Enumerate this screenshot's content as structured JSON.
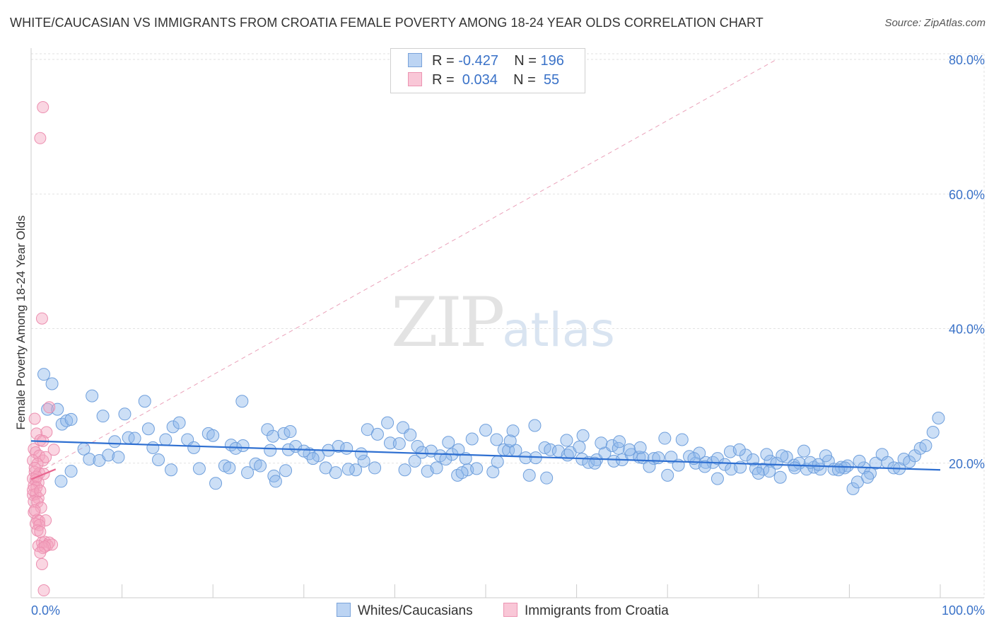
{
  "title": "WHITE/CAUCASIAN VS IMMIGRANTS FROM CROATIA FEMALE POVERTY AMONG 18-24 YEAR OLDS CORRELATION CHART",
  "source": "Source: ZipAtlas.com",
  "watermark": {
    "zip": "ZIP",
    "atlas": "atlas"
  },
  "colors": {
    "blue": "#8fb8ea",
    "blue_line": "#2e6fd1",
    "pink": "#f3a3bf",
    "pink_line": "#e86690",
    "axis_label": "#3a72c8"
  },
  "legend": {
    "rows": [
      {
        "r_label": "R = ",
        "r_value": "-0.427",
        "n_label": "N = ",
        "n_value": "196"
      },
      {
        "r_label": "R = ",
        "r_value": " 0.034",
        "n_label": "N = ",
        "n_value": " 55"
      }
    ]
  },
  "bottom_legend": [
    "Whites/Caucasians",
    "Immigrants from Croatia"
  ],
  "chart_data": {
    "type": "scatter",
    "title": "WHITE/CAUCASIAN VS IMMIGRANTS FROM CROATIA FEMALE POVERTY AMONG 18-24 YEAR OLDS CORRELATION CHART",
    "xlabel": "",
    "ylabel": "Female Poverty Among 18-24 Year Olds",
    "xlim": [
      0,
      100
    ],
    "ylim": [
      0,
      80
    ],
    "x_tick_labels": [
      "0.0%",
      "100.0%"
    ],
    "y_tick_labels": [
      "20.0%",
      "40.0%",
      "60.0%",
      "80.0%"
    ],
    "y_ticks": [
      20,
      40,
      60,
      80
    ],
    "grid": true,
    "legend_position": "top-center",
    "series": [
      {
        "name": "Whites/Caucasians",
        "r": -0.427,
        "n": 196,
        "trend": {
          "x": [
            0,
            100
          ],
          "y": [
            23.3,
            19.0
          ]
        },
        "points": [
          [
            1.4,
            33.2
          ],
          [
            2.3,
            31.8
          ],
          [
            1.8,
            28.0
          ],
          [
            2.9,
            28.0
          ],
          [
            3.4,
            25.8
          ],
          [
            3.9,
            26.3
          ],
          [
            4.4,
            26.5
          ],
          [
            6.7,
            30.0
          ],
          [
            7.9,
            27.0
          ],
          [
            10.3,
            27.3
          ],
          [
            12.5,
            29.2
          ],
          [
            9.2,
            23.2
          ],
          [
            5.8,
            22.1
          ],
          [
            6.4,
            20.6
          ],
          [
            7.5,
            20.4
          ],
          [
            8.5,
            21.2
          ],
          [
            9.6,
            20.9
          ],
          [
            4.4,
            18.8
          ],
          [
            3.3,
            17.3
          ],
          [
            10.7,
            23.8
          ],
          [
            11.4,
            23.7
          ],
          [
            13.4,
            22.3
          ],
          [
            12.9,
            25.1
          ],
          [
            14.8,
            23.5
          ],
          [
            15.6,
            25.4
          ],
          [
            16.3,
            26.0
          ],
          [
            17.2,
            23.5
          ],
          [
            17.9,
            22.3
          ],
          [
            19.5,
            24.4
          ],
          [
            20.0,
            24.1
          ],
          [
            22.0,
            22.7
          ],
          [
            22.5,
            22.2
          ],
          [
            23.3,
            22.6
          ],
          [
            21.3,
            19.6
          ],
          [
            20.3,
            17.0
          ],
          [
            21.8,
            19.3
          ],
          [
            23.8,
            18.6
          ],
          [
            24.7,
            19.9
          ],
          [
            26.3,
            21.9
          ],
          [
            25.2,
            19.6
          ],
          [
            26.7,
            18.1
          ],
          [
            26.9,
            17.3
          ],
          [
            23.2,
            29.2
          ],
          [
            26.0,
            25.0
          ],
          [
            26.6,
            24.0
          ],
          [
            27.8,
            24.4
          ],
          [
            28.5,
            24.7
          ],
          [
            28.3,
            22.0
          ],
          [
            29.1,
            22.5
          ],
          [
            30.6,
            21.4
          ],
          [
            31.6,
            21.1
          ],
          [
            31.0,
            20.7
          ],
          [
            32.7,
            21.9
          ],
          [
            33.8,
            22.5
          ],
          [
            34.7,
            22.2
          ],
          [
            32.4,
            19.3
          ],
          [
            33.5,
            18.6
          ],
          [
            35.7,
            19.0
          ],
          [
            36.6,
            20.3
          ],
          [
            37.8,
            19.3
          ],
          [
            37.0,
            25.0
          ],
          [
            38.1,
            24.3
          ],
          [
            39.5,
            23.0
          ],
          [
            40.5,
            22.9
          ],
          [
            39.2,
            26.0
          ],
          [
            40.9,
            25.3
          ],
          [
            41.7,
            24.2
          ],
          [
            42.5,
            22.5
          ],
          [
            43.0,
            21.6
          ],
          [
            44.0,
            21.8
          ],
          [
            45.0,
            21.1
          ],
          [
            45.9,
            23.1
          ],
          [
            46.3,
            21.3
          ],
          [
            47.0,
            22.0
          ],
          [
            43.6,
            18.8
          ],
          [
            46.9,
            18.2
          ],
          [
            47.8,
            20.7
          ],
          [
            48.5,
            23.6
          ],
          [
            50.0,
            24.9
          ],
          [
            51.2,
            23.5
          ],
          [
            52.0,
            22.0
          ],
          [
            52.5,
            21.9
          ],
          [
            53.3,
            21.9
          ],
          [
            54.4,
            20.8
          ],
          [
            55.5,
            20.8
          ],
          [
            56.5,
            22.3
          ],
          [
            57.1,
            22.0
          ],
          [
            58.0,
            21.8
          ],
          [
            59.0,
            21.2
          ],
          [
            59.3,
            21.6
          ],
          [
            60.6,
            20.6
          ],
          [
            61.3,
            20.1
          ],
          [
            62.2,
            20.5
          ],
          [
            63.1,
            21.5
          ],
          [
            64.1,
            20.3
          ],
          [
            65.0,
            20.5
          ],
          [
            66.0,
            21.3
          ],
          [
            66.9,
            20.9
          ],
          [
            54.8,
            18.2
          ],
          [
            56.7,
            17.8
          ],
          [
            55.4,
            25.6
          ],
          [
            53.0,
            24.8
          ],
          [
            58.9,
            23.4
          ],
          [
            60.3,
            22.4
          ],
          [
            62.7,
            23.0
          ],
          [
            63.9,
            22.6
          ],
          [
            64.6,
            22.2
          ],
          [
            65.8,
            22.0
          ],
          [
            67.3,
            20.8
          ],
          [
            68.5,
            20.7
          ],
          [
            69.0,
            20.8
          ],
          [
            70.4,
            20.9
          ],
          [
            71.2,
            19.7
          ],
          [
            72.4,
            21.0
          ],
          [
            73.1,
            20.0
          ],
          [
            74.2,
            20.1
          ],
          [
            75.0,
            20.1
          ],
          [
            75.5,
            20.7
          ],
          [
            76.3,
            19.8
          ],
          [
            77.0,
            19.1
          ],
          [
            78.0,
            19.4
          ],
          [
            78.6,
            21.2
          ],
          [
            79.4,
            20.5
          ],
          [
            79.7,
            19.2
          ],
          [
            80.5,
            19.1
          ],
          [
            81.3,
            20.3
          ],
          [
            82.0,
            20.0
          ],
          [
            83.1,
            20.9
          ],
          [
            83.9,
            19.7
          ],
          [
            84.5,
            20.0
          ],
          [
            85.0,
            21.8
          ],
          [
            85.3,
            19.1
          ],
          [
            86.1,
            19.4
          ],
          [
            86.8,
            19.1
          ],
          [
            87.7,
            20.3
          ],
          [
            88.3,
            19.1
          ],
          [
            89.1,
            19.4
          ],
          [
            89.8,
            19.6
          ],
          [
            90.4,
            16.2
          ],
          [
            90.9,
            17.2
          ],
          [
            91.6,
            19.3
          ],
          [
            92.3,
            18.5
          ],
          [
            92.9,
            20.0
          ],
          [
            93.6,
            21.3
          ],
          [
            94.2,
            20.1
          ],
          [
            94.9,
            19.3
          ],
          [
            95.5,
            19.2
          ],
          [
            96.0,
            20.6
          ],
          [
            96.6,
            20.2
          ],
          [
            97.2,
            21.1
          ],
          [
            97.8,
            22.2
          ],
          [
            98.4,
            22.6
          ],
          [
            99.2,
            24.6
          ],
          [
            99.8,
            26.7
          ],
          [
            69.7,
            23.7
          ],
          [
            71.6,
            23.5
          ],
          [
            73.5,
            21.5
          ],
          [
            72.9,
            20.7
          ],
          [
            76.9,
            21.7
          ],
          [
            77.9,
            22.0
          ],
          [
            80.9,
            21.3
          ],
          [
            82.6,
            21.1
          ],
          [
            84.0,
            19.3
          ],
          [
            87.4,
            21.1
          ],
          [
            89.5,
            19.3
          ],
          [
            91.1,
            20.3
          ],
          [
            60.7,
            24.1
          ],
          [
            62.0,
            20.0
          ],
          [
            64.7,
            23.2
          ],
          [
            67.0,
            22.3
          ],
          [
            68.0,
            19.5
          ],
          [
            70.0,
            18.2
          ],
          [
            74.1,
            19.5
          ],
          [
            75.5,
            17.7
          ],
          [
            80.0,
            18.5
          ],
          [
            81.2,
            18.8
          ],
          [
            82.4,
            17.9
          ],
          [
            85.7,
            20.1
          ],
          [
            86.6,
            19.8
          ],
          [
            88.8,
            19.0
          ],
          [
            92.0,
            17.9
          ],
          [
            48.0,
            19.0
          ],
          [
            49.0,
            19.2
          ],
          [
            50.8,
            18.7
          ],
          [
            51.3,
            20.2
          ],
          [
            52.7,
            23.3
          ],
          [
            44.6,
            19.3
          ],
          [
            45.6,
            20.6
          ],
          [
            47.4,
            18.6
          ],
          [
            42.2,
            20.3
          ],
          [
            41.1,
            19.0
          ],
          [
            36.3,
            21.4
          ],
          [
            34.9,
            19.1
          ],
          [
            30.0,
            21.8
          ],
          [
            28.0,
            18.9
          ],
          [
            18.5,
            19.2
          ],
          [
            15.4,
            19.0
          ],
          [
            14.0,
            20.5
          ]
        ]
      },
      {
        "name": "Immigrants from Croatia",
        "r": 0.034,
        "n": 55,
        "trend": {
          "x": [
            0,
            2.7
          ],
          "y": [
            17.6,
            19.1
          ]
        },
        "points": [
          [
            1.3,
            72.9
          ],
          [
            1.0,
            68.3
          ],
          [
            1.2,
            41.5
          ],
          [
            2.0,
            28.3
          ],
          [
            0.4,
            26.6
          ],
          [
            0.6,
            24.4
          ],
          [
            1.7,
            24.6
          ],
          [
            1.0,
            23.4
          ],
          [
            1.3,
            23.3
          ],
          [
            0.3,
            22.1
          ],
          [
            2.5,
            22.0
          ],
          [
            0.5,
            21.6
          ],
          [
            0.9,
            21.1
          ],
          [
            1.3,
            20.4
          ],
          [
            1.6,
            20.9
          ],
          [
            0.2,
            20.4
          ],
          [
            0.7,
            19.9
          ],
          [
            0.4,
            18.7
          ],
          [
            0.9,
            18.5
          ],
          [
            1.4,
            18.4
          ],
          [
            0.2,
            17.7
          ],
          [
            0.5,
            17.5
          ],
          [
            0.8,
            17.1
          ],
          [
            0.3,
            16.6
          ],
          [
            0.6,
            16.4
          ],
          [
            0.2,
            15.3
          ],
          [
            0.5,
            15.4
          ],
          [
            0.8,
            14.8
          ],
          [
            0.3,
            14.3
          ],
          [
            0.7,
            14.2
          ],
          [
            1.1,
            13.4
          ],
          [
            0.3,
            12.7
          ],
          [
            0.7,
            11.6
          ],
          [
            0.9,
            11.4
          ],
          [
            1.6,
            11.5
          ],
          [
            0.5,
            11.0
          ],
          [
            0.9,
            10.8
          ],
          [
            0.7,
            10.0
          ],
          [
            1.0,
            9.8
          ],
          [
            1.2,
            8.2
          ],
          [
            1.5,
            8.3
          ],
          [
            2.0,
            8.2
          ],
          [
            1.8,
            7.8
          ],
          [
            2.3,
            7.9
          ],
          [
            0.8,
            7.7
          ],
          [
            1.3,
            7.4
          ],
          [
            1.5,
            7.6
          ],
          [
            1.0,
            6.7
          ],
          [
            1.2,
            5.0
          ],
          [
            1.4,
            1.1
          ],
          [
            0.4,
            19.3
          ],
          [
            0.6,
            18.0
          ],
          [
            0.2,
            16.0
          ],
          [
            1.0,
            15.9
          ],
          [
            0.4,
            13.0
          ]
        ]
      }
    ],
    "reference_line": {
      "x": [
        0,
        82
      ],
      "y": [
        18,
        80
      ]
    }
  }
}
